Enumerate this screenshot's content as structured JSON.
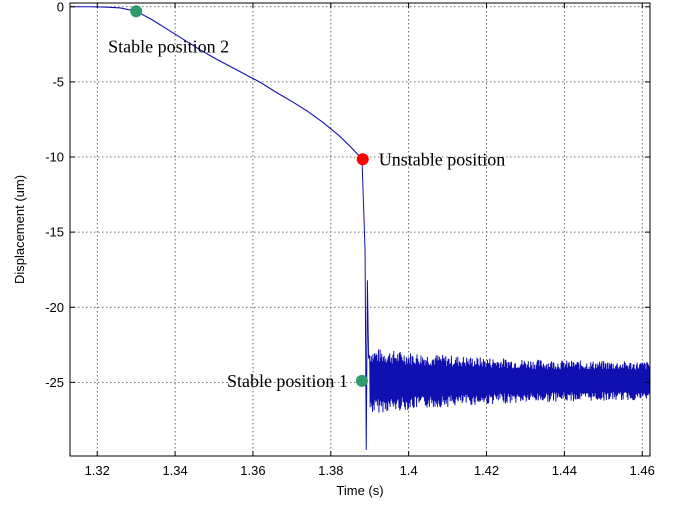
{
  "chart_data": {
    "type": "line",
    "xlabel": "Time (s)",
    "ylabel": "Displacement (um)",
    "xlim": [
      1.313,
      1.462
    ],
    "ylim": [
      -29.9,
      0.25
    ],
    "grid": true,
    "xticks": [
      1.32,
      1.34,
      1.36,
      1.38,
      1.4,
      1.42,
      1.44,
      1.46
    ],
    "xtick_labels": [
      "1.32",
      "1.34",
      "1.36",
      "1.38",
      "1.4",
      "1.42",
      "1.44",
      "1.46"
    ],
    "yticks": [
      0,
      -5,
      -10,
      -15,
      -20,
      -25
    ],
    "ytick_labels": [
      "0",
      "-5",
      "-10",
      "-15",
      "-20",
      "-25"
    ],
    "series": [
      {
        "color": "#1010b0",
        "x": [
          1.313,
          1.318,
          1.322,
          1.326,
          1.33,
          1.334,
          1.338,
          1.342,
          1.346,
          1.35,
          1.354,
          1.358,
          1.362,
          1.366,
          1.37,
          1.374,
          1.378,
          1.382,
          1.385,
          1.387,
          1.388
        ],
        "y": [
          0.0,
          0.0,
          -0.02,
          -0.08,
          -0.3,
          -0.85,
          -1.5,
          -2.15,
          -2.8,
          -3.4,
          -3.95,
          -4.5,
          -5.05,
          -5.7,
          -6.3,
          -6.95,
          -7.7,
          -8.55,
          -9.3,
          -9.85,
          -10.1
        ]
      }
    ],
    "oscillation": {
      "start": 1.3888,
      "end": 1.462,
      "center": -24.9,
      "initial_amplitude": 2.2,
      "final_amplitude": 0.7,
      "min_spike": -29.5,
      "first_peak": -18.2
    },
    "markers": [
      {
        "x": 1.33,
        "y": -0.3,
        "color": "#2e9c6a",
        "label": "Stable position 2"
      },
      {
        "x": 1.3882,
        "y": -10.15,
        "color": "#ff0000",
        "label": "Unstable position"
      },
      {
        "x": 1.388,
        "y": -24.9,
        "color": "#2e9c6a",
        "label": "Stable position 1"
      }
    ]
  }
}
